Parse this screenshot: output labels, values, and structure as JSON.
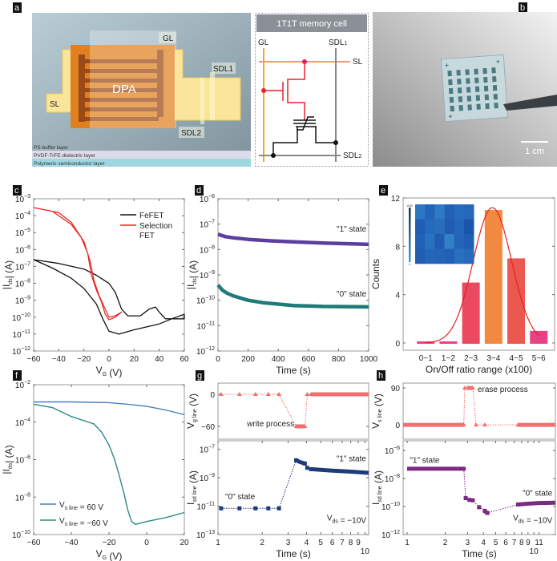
{
  "panel_labels": {
    "a": "a",
    "b": "b",
    "c": "c",
    "d": "d",
    "e": "e",
    "f": "f",
    "g": "g",
    "h": "h"
  },
  "panel_a": {
    "gl": "GL",
    "dpa": "DPA",
    "sl": "SL",
    "sdl1": "SDL1",
    "sdl2": "SDL2",
    "layers": [
      "PS buffer layer",
      "PVDF-TrFE dielectric layer",
      "Polymeric semiconductor layer"
    ],
    "circuit": {
      "title": "1T1T memory cell",
      "gl": "GL",
      "sdl1": "SDL",
      "sdl1_sub": "1",
      "sl": "SL",
      "sdl2": "SDL",
      "sdl2_sub": "2"
    }
  },
  "panel_b": {
    "scale_bar": "1 cm"
  },
  "chart_data": [
    {
      "id": "c",
      "type": "line",
      "xscale": "linear",
      "yscale": "log",
      "xlim": [
        -60,
        60
      ],
      "ylim": [
        1e-12,
        0.001
      ],
      "xticks": [
        -60,
        -40,
        -20,
        0,
        20,
        40,
        60
      ],
      "yticks": [
        1e-12,
        1e-11,
        1e-10,
        1e-09,
        1e-08,
        1e-07,
        1e-06,
        1e-05,
        0.0001,
        0.001
      ],
      "xlabel": [
        {
          "t": "V"
        },
        {
          "t": "G",
          "sub": true
        },
        {
          "t": "   (V)"
        }
      ],
      "ylabel": [
        {
          "t": "|I"
        },
        {
          "t": "ds",
          "sub": true
        },
        {
          "t": "|   (A)"
        }
      ],
      "legend": {
        "placement": "top-right",
        "entries": [
          {
            "name": "FeFET",
            "color": "#111111"
          },
          {
            "name": "Selection FET",
            "color": "#e82020"
          }
        ]
      },
      "series": [
        {
          "name": "FeFET",
          "color": "#111111",
          "width": 1.3,
          "x": [
            -60,
            -40,
            -20,
            -10,
            0,
            5,
            10,
            15,
            25,
            32,
            37,
            40,
            45,
            60,
            60,
            50,
            40,
            20,
            8,
            0,
            -5,
            -10,
            -20,
            -30,
            -45,
            -60
          ],
          "y": [
            2.5e-07,
            1.5e-07,
            7e-08,
            3e-08,
            1e-08,
            3e-09,
            3e-10,
            1.2e-10,
            1.2e-10,
            3e-10,
            4e-10,
            2e-10,
            8e-11,
            8e-11,
            1.5e-10,
            8e-11,
            4e-11,
            1.8e-11,
            1e-11,
            1.5e-11,
            8e-11,
            6e-10,
            5e-09,
            2e-08,
            8e-08,
            2.5e-07
          ]
        },
        {
          "name": "Selection FET",
          "color": "#e82020",
          "width": 1.2,
          "x": [
            -60,
            -40,
            -30,
            -20,
            -15,
            -12,
            -8,
            -3,
            0,
            5,
            10,
            5,
            0,
            -3,
            -6,
            -10,
            -14,
            -17,
            -22,
            -30,
            -45,
            -60
          ],
          "y": [
            0.0003,
            0.00015,
            4e-05,
            3e-06,
            2e-07,
            1.5e-08,
            2e-09,
            3e-10,
            1e-10,
            1.2e-10,
            2e-10,
            1e-10,
            7e-11,
            1.5e-10,
            8e-10,
            4e-09,
            3e-08,
            6e-07,
            5e-06,
            3e-05,
            0.00018,
            0.0003
          ]
        }
      ]
    },
    {
      "id": "d",
      "type": "line",
      "xscale": "linear",
      "yscale": "log",
      "xlim": [
        0,
        1000
      ],
      "ylim": [
        1e-12,
        1e-06
      ],
      "xticks": [
        0,
        200,
        400,
        600,
        800,
        1000
      ],
      "yticks": [
        1e-12,
        1e-11,
        1e-10,
        1e-09,
        1e-08,
        1e-07,
        1e-06
      ],
      "xlabel": [
        {
          "t": "Time    (s)"
        }
      ],
      "ylabel": [
        {
          "t": "|I"
        },
        {
          "t": "ds",
          "sub": true
        },
        {
          "t": "|   (A)"
        }
      ],
      "annotations": [
        {
          "text": [
            {
              "t": "\"1\" state"
            }
          ],
          "x": 985,
          "y": 5e-08,
          "anchor": "end"
        },
        {
          "text": [
            {
              "t": "\"0\" state"
            }
          ],
          "x": 985,
          "y": 1.4e-10,
          "anchor": "end"
        }
      ],
      "series": [
        {
          "name": "\"1\" state",
          "color": "#5b3fa0",
          "width": 4.5,
          "x": [
            0,
            50,
            100,
            200,
            350,
            500,
            700,
            1000
          ],
          "y": [
            4e-08,
            3.2e-08,
            2.9e-08,
            2.5e-08,
            2.2e-08,
            2e-08,
            1.8e-08,
            1.6e-08
          ]
        },
        {
          "name": "\"0\" state",
          "color": "#1f7a78",
          "width": 4.5,
          "x": [
            0,
            30,
            60,
            100,
            200,
            300,
            500,
            700,
            1000
          ],
          "y": [
            4e-10,
            2.5e-10,
            1.9e-10,
            1.5e-10,
            1e-10,
            8e-11,
            6.2e-11,
            5.7e-11,
            5.5e-11
          ]
        }
      ]
    },
    {
      "id": "e",
      "type": "bar",
      "xlim": [
        -0.5,
        6.2
      ],
      "ylim": [
        -0.6,
        12
      ],
      "categories": [
        "0~1",
        "1~2",
        "2~3",
        "3~4",
        "4~5",
        "5~6"
      ],
      "values": [
        0,
        0,
        5,
        11,
        7,
        1
      ],
      "colors": [
        "#e8307a",
        "#e8307a",
        "#e83a52",
        "#f08030",
        "#e84a40",
        "#e8307a"
      ],
      "yticks": [
        0,
        4,
        8,
        12
      ],
      "xlabel": [
        {
          "t": "On/Off ratio range (x100)"
        }
      ],
      "ylabel": [
        {
          "t": "Counts"
        }
      ],
      "fit": {
        "type": "gaussian",
        "amplitude": 11.2,
        "center": 3.45,
        "sigma": 0.85,
        "range": [
          0.5,
          5.5
        ],
        "color": "#e82020"
      },
      "inset": {
        "colorbar_max": "1000",
        "colorbar_min": "0",
        "max": 1000,
        "values": [
          [
            520,
            700,
            480,
            720,
            620,
            660
          ],
          [
            760,
            640,
            600,
            780,
            680,
            860
          ],
          [
            720,
            560,
            780,
            420,
            700,
            760
          ],
          [
            760,
            680,
            700,
            740,
            580,
            640
          ]
        ]
      }
    },
    {
      "id": "f",
      "type": "line",
      "xscale": "linear",
      "yscale": "log",
      "xlim": [
        -60,
        20
      ],
      "ylim": [
        1e-10,
        0.01
      ],
      "xticks": [
        -60,
        -40,
        -20,
        0,
        20
      ],
      "yticks": [
        1e-10,
        1e-08,
        1e-06,
        0.0001,
        0.01
      ],
      "xlabel": [
        {
          "t": "V"
        },
        {
          "t": "G",
          "sub": true
        },
        {
          "t": "   (V)"
        }
      ],
      "ylabel": [
        {
          "t": "|I"
        },
        {
          "t": "ds",
          "sub": true
        },
        {
          "t": "|   (A)"
        }
      ],
      "legend": {
        "placement": "bottom-left",
        "entries": [
          {
            "name": [
              {
                "t": "V"
              },
              {
                "t": "s line",
                "sub": true
              },
              {
                "t": " = 60 V"
              }
            ],
            "color": "#4a7fc4"
          },
          {
            "name": [
              {
                "t": "V"
              },
              {
                "t": "s line",
                "sub": true
              },
              {
                "t": " = −60 V"
              }
            ],
            "color": "#2b8a84"
          }
        ]
      },
      "series": [
        {
          "name": "Vs line = 60 V",
          "color": "#4a7fc4",
          "width": 1.4,
          "x": [
            -60,
            -40,
            -20,
            -10,
            0,
            10,
            20
          ],
          "y": [
            0.0012,
            0.0012,
            0.0011,
            0.0009,
            0.0007,
            0.00045,
            0.00025
          ]
        },
        {
          "name": "Vs line = -60 V",
          "color": "#2b8a84",
          "width": 1.4,
          "x": [
            -60,
            -50,
            -40,
            -28,
            -24,
            -20,
            -17,
            -15,
            -12,
            -10,
            -8,
            -6,
            0,
            10,
            20
          ],
          "y": [
            0.0009,
            0.0006,
            0.0002,
            8e-05,
            3e-05,
            6e-06,
            1e-06,
            2e-07,
            1.5e-08,
            2e-09,
            5e-10,
            3.5e-10,
            5e-10,
            8e-10,
            1.5e-09
          ]
        }
      ]
    },
    {
      "id": "g_top",
      "type": "line",
      "xscale": "log",
      "yscale": "linear",
      "xlim": [
        1,
        10.6
      ],
      "ylim": [
        -84,
        21
      ],
      "yticks": [
        0,
        -60
      ],
      "xticks": [],
      "ylabel": [
        {
          "t": "V"
        },
        {
          "t": "g line",
          "sub": true
        },
        {
          "t": " (V)"
        }
      ],
      "annotations": [
        {
          "text": [
            {
              "t": "write process"
            }
          ],
          "x": 3.3,
          "y": -60,
          "anchor": "end"
        }
      ],
      "series": [
        {
          "color": "#f07070",
          "width": 1,
          "dash": "dot",
          "marker": "triangle",
          "x": [
            1.05,
            1.4,
            1.8,
            2.2,
            2.6,
            3.4,
            3.9,
            4.05,
            4.3
          ],
          "y": [
            0,
            0,
            0,
            0,
            0,
            -60,
            -60,
            0,
            0
          ]
        },
        {
          "color": "#f07070",
          "width": 5,
          "x": [
            3.4,
            3.9
          ],
          "y": [
            -60,
            -60
          ]
        },
        {
          "color": "#f07070",
          "width": 5,
          "x": [
            4.3,
            10.6
          ],
          "y": [
            0,
            0
          ]
        }
      ]
    },
    {
      "id": "g_bottom",
      "type": "line",
      "xscale": "log",
      "yscale": "log",
      "xlim": [
        1,
        10.6
      ],
      "ylim": [
        1e-13,
        4e-07
      ],
      "xticks": [
        1,
        2,
        3,
        4,
        5,
        6,
        7,
        8,
        9,
        10
      ],
      "yticks": [
        1e-13,
        1e-11,
        1e-09,
        1e-07
      ],
      "xlabel": [
        {
          "t": "Time (s)"
        }
      ],
      "ylabel": [
        {
          "t": "I"
        },
        {
          "t": "sd line",
          "sub": true
        },
        {
          "t": " (A)"
        }
      ],
      "annotations": [
        {
          "text": [
            {
              "t": "\"1\" state"
            }
          ],
          "x": 10.2,
          "y": 1.5e-08,
          "anchor": "end"
        },
        {
          "text": [
            {
              "t": "\"0\" state"
            }
          ],
          "x": 1.12,
          "y": 3e-11,
          "anchor": "start"
        },
        {
          "text": [
            {
              "t": "V"
            },
            {
              "t": "ds",
              "sub": true
            },
            {
              "t": " = −10V"
            }
          ],
          "x": 10.2,
          "y": 1e-12,
          "anchor": "end"
        }
      ],
      "series": [
        {
          "color": "#1e3a7a",
          "width": 1,
          "dash": "dot",
          "marker": "square",
          "x": [
            1.05,
            1.4,
            1.8,
            2.2,
            2.6,
            3.4,
            3.9,
            4.05,
            4.3
          ],
          "y": [
            7e-12,
            7e-12,
            7e-12,
            7e-12,
            7e-12,
            1.7e-08,
            1e-08,
            5e-09,
            4e-09
          ]
        },
        {
          "color": "#1e3a7a",
          "width": 5,
          "x": [
            3.4,
            3.6,
            3.9
          ],
          "y": [
            1.7e-08,
            1.3e-08,
            1e-08
          ]
        },
        {
          "color": "#1e3a7a",
          "width": 5,
          "x": [
            4.3,
            6,
            8,
            10.6
          ],
          "y": [
            4e-09,
            3.2e-09,
            2.7e-09,
            2.2e-09
          ]
        }
      ]
    },
    {
      "id": "h_top",
      "type": "line",
      "xscale": "log",
      "yscale": "linear",
      "xlim": [
        0.93,
        14.8
      ],
      "ylim": [
        -35,
        102
      ],
      "yticks": [
        0,
        90
      ],
      "xticks": [],
      "ylabel": [
        {
          "t": "V"
        },
        {
          "t": "s line",
          "sub": true
        },
        {
          "t": " (V)"
        }
      ],
      "annotations": [
        {
          "text": [
            {
              "t": "erase process"
            }
          ],
          "x": 3.6,
          "y": 80,
          "anchor": "start"
        }
      ],
      "series": [
        {
          "color": "#f07070",
          "width": 1,
          "dash": "dot",
          "marker": "triangle",
          "x": [
            2.8,
            2.85,
            3.3,
            3.5,
            4.1,
            7.5
          ],
          "y": [
            0,
            90,
            90,
            0,
            0,
            0
          ]
        },
        {
          "color": "#f07070",
          "width": 5,
          "x": [
            0.93,
            2.8
          ],
          "y": [
            0,
            0
          ]
        },
        {
          "color": "#f07070",
          "width": 5,
          "x": [
            2.95,
            3.3
          ],
          "y": [
            90,
            90
          ]
        },
        {
          "color": "#f07070",
          "width": 5,
          "x": [
            7.5,
            14.8
          ],
          "y": [
            0,
            0
          ]
        }
      ]
    },
    {
      "id": "h_bottom",
      "type": "line",
      "xscale": "log",
      "yscale": "log",
      "xlim": [
        0.93,
        14.8
      ],
      "ylim": [
        1e-12,
        5e-06
      ],
      "xticks": [
        1,
        2,
        3,
        4,
        5,
        6,
        7,
        8,
        9,
        10,
        11
      ],
      "yticks": [
        1e-12,
        1e-10,
        1e-08,
        1e-06
      ],
      "xlabel": [
        {
          "t": "Time (s)"
        }
      ],
      "ylabel": [
        {
          "t": "I"
        },
        {
          "t": "sd line",
          "sub": true
        },
        {
          "t": " (A)"
        }
      ],
      "annotations": [
        {
          "text": [
            {
              "t": "\"1\" state"
            }
          ],
          "x": 1.05,
          "y": 1.3e-07,
          "anchor": "start"
        },
        {
          "text": [
            {
              "t": "\"0\" state"
            }
          ],
          "x": 14,
          "y": 6e-10,
          "anchor": "end"
        },
        {
          "text": [
            {
              "t": "V"
            },
            {
              "t": "ds",
              "sub": true
            },
            {
              "t": " = −10V"
            }
          ],
          "x": 14,
          "y": 1e-11,
          "anchor": "end"
        }
      ],
      "series": [
        {
          "color": "#7a2a80",
          "width": 5,
          "x": [
            1,
            2.8
          ],
          "y": [
            5e-08,
            5e-08
          ]
        },
        {
          "color": "#7a2a80",
          "width": 1,
          "dash": "dot",
          "marker": "square",
          "x": [
            2.8,
            2.9,
            3.1,
            3.3,
            3.7,
            4.1,
            4.3,
            7.5
          ],
          "y": [
            5e-08,
            4e-10,
            3e-10,
            2.8e-10,
            9e-11,
            5e-11,
            3.5e-11,
            1.4e-10
          ]
        },
        {
          "color": "#7a2a80",
          "width": 5,
          "x": [
            4.05,
            4.3
          ],
          "y": [
            5e-11,
            3.5e-11
          ]
        },
        {
          "color": "#7a2a80",
          "width": 5,
          "x": [
            7.5,
            9,
            11,
            14.8
          ],
          "y": [
            1.4e-10,
            1.6e-10,
            1.8e-10,
            1.9e-10
          ]
        }
      ]
    }
  ]
}
